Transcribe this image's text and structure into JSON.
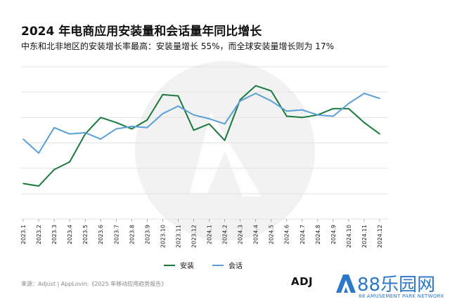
{
  "header": {
    "title": "2024 年电商应用安装量和会话量年同比增长",
    "subtitle": "中东和北非地区的安装增长率最高：安装量增长 55%，而全球安装量增长则为 17%"
  },
  "chart_data": {
    "type": "line",
    "title": "2024 年电商应用安装量和会话量年同比增长",
    "subtitle": "中东和北非地区的安装增长率最高：安装量增长 55%，而全球安装量增长则为 17%",
    "categories": [
      "2023.1",
      "2023.2",
      "2023.3",
      "2023.4",
      "2023.5",
      "2023.6",
      "2023.7",
      "2023.8",
      "2023.9",
      "2023.10",
      "2023.11",
      "2023.12",
      "2024.1",
      "2024.2",
      "2024.3",
      "2024.4",
      "2024.5",
      "2024.6",
      "2024.7",
      "2024.8",
      "2024.9",
      "2024.10",
      "2024.11",
      "2024.12"
    ],
    "series": [
      {
        "name": "安装",
        "color": "#1a7a3c",
        "values": [
          -22,
          -24,
          -11,
          -5,
          17,
          30,
          26,
          21,
          28,
          48,
          47,
          20,
          25,
          12,
          44,
          55,
          51,
          31,
          30,
          32,
          37,
          37,
          26,
          17
        ]
      },
      {
        "name": "会话",
        "color": "#5a9fd8",
        "values": [
          13,
          2,
          22,
          17,
          18,
          13,
          21,
          23,
          22,
          33,
          39,
          32,
          29,
          25,
          43,
          49,
          43,
          35,
          36,
          32,
          31,
          41,
          49,
          45
        ]
      }
    ],
    "grid": true,
    "y_axis_labels_shown": false,
    "legend_position": "bottom-center"
  },
  "legend": {
    "install": "安装",
    "session": "会话"
  },
  "footer": {
    "source": "来源：Adjust | AppLovin:《2025 年移动应用趋势报告》",
    "adj_logo_text": "ADJ",
    "brand_name": "88乐园网",
    "brand_sub": "88 AMUSEMENT PARK NETWORK"
  },
  "colors": {
    "install": "#1a7a3c",
    "session": "#5a9fd8",
    "grid": "#e3e3e3",
    "brand": "#2d77c9"
  }
}
